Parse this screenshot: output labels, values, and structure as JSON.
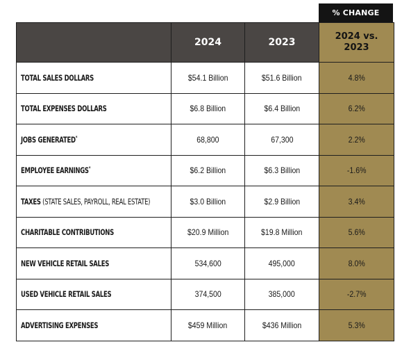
{
  "change_header": "% CHANGE",
  "columns": {
    "y2024": "2024",
    "y2023": "2023",
    "change_line1": "2024 vs.",
    "change_line2": "2023"
  },
  "rows": [
    {
      "label": "TOTAL SALES DOLLARS",
      "sup": "",
      "note": "",
      "v2024": "$54.1 Billion",
      "v2023": "$51.6 Billion",
      "change": "4.8%"
    },
    {
      "label": "TOTAL EXPENSES DOLLARS",
      "sup": "",
      "note": "",
      "v2024": "$6.8 Billion",
      "v2023": "$6.4 Billion",
      "change": "6.2%"
    },
    {
      "label": "JOBS GENERATED",
      "sup": "*",
      "note": "",
      "v2024": "68,800",
      "v2023": "67,300",
      "change": "2.2%"
    },
    {
      "label": "EMPLOYEE EARNINGS",
      "sup": "*",
      "note": "",
      "v2024": "$6.2 Billion",
      "v2023": "$6.3 Billion",
      "change": "-1.6%"
    },
    {
      "label": "TAXES",
      "sup": "",
      "note": " (STATE SALES, PAYROLL, REAL ESTATE)",
      "v2024": "$3.0 Billion",
      "v2023": "$2.9 Billion",
      "change": "3.4%"
    },
    {
      "label": "CHARITABLE CONTRIBUTIONS",
      "sup": "",
      "note": "",
      "v2024": "$20.9 Million",
      "v2023": "$19.8 Million",
      "change": "5.6%"
    },
    {
      "label": "NEW VEHICLE RETAIL SALES",
      "sup": "",
      "note": "",
      "v2024": "534,600",
      "v2023": "495,000",
      "change": "8.0%"
    },
    {
      "label": "USED VEHICLE RETAIL SALES",
      "sup": "",
      "note": "",
      "v2024": "374,500",
      "v2023": "385,000",
      "change": "-2.7%"
    },
    {
      "label": "ADVERTISING EXPENSES",
      "sup": "",
      "note": "",
      "v2024": "$459 Million",
      "v2023": "$436 Million",
      "change": "5.3%"
    }
  ],
  "colors": {
    "header_bg": "#4a4644",
    "change_tab_bg": "#141414",
    "change_col_bg": "#a08a52",
    "border": "#1e1e1e"
  }
}
